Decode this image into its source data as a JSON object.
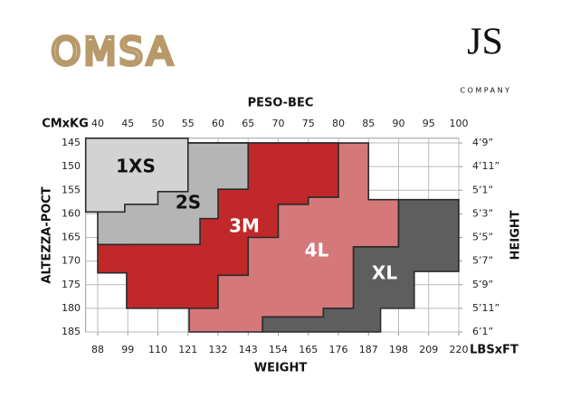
{
  "logos": {
    "left": "OMSA",
    "right": "JS",
    "right_sub": "COMPANY"
  },
  "chart_data": {
    "type": "size-chart",
    "x_title": "PESO-ВЕС",
    "x2_title": "WEIGHT",
    "y_title": "ALTEZZA-РОСТ",
    "y2_title": "HEIGHT",
    "x_unit": "CMxKG",
    "x2_unit": "LBSxFT",
    "xlim": [
      38,
      100
    ],
    "xticks": [
      40,
      45,
      50,
      55,
      60,
      65,
      70,
      75,
      80,
      85,
      90,
      95,
      100
    ],
    "x2lim": [
      83.6,
      220
    ],
    "x2ticks": [
      88,
      99,
      110,
      121,
      132,
      143,
      154,
      165,
      176,
      187,
      198,
      209,
      220
    ],
    "ylim": [
      144,
      185
    ],
    "y_inverted": true,
    "yticks": [
      145,
      150,
      155,
      160,
      165,
      170,
      175,
      180,
      185
    ],
    "y2lim": [
      56.6,
      73
    ],
    "y2ticks": [
      {
        "value": 57,
        "label": "4’9”"
      },
      {
        "value": 59,
        "label": "4’11”"
      },
      {
        "value": 61,
        "label": "5’1”"
      },
      {
        "value": 63,
        "label": "5’3”"
      },
      {
        "value": 65,
        "label": "5’5”"
      },
      {
        "value": 67,
        "label": "5’7”"
      },
      {
        "value": 69,
        "label": "5’9”"
      },
      {
        "value": 71,
        "label": "5’11”"
      },
      {
        "value": 73,
        "label": "6’1”"
      }
    ],
    "grid": true,
    "series": [
      {
        "name": "4L",
        "color": "#d4787a",
        "x": [
          55.2,
          85,
          85,
          90,
          90,
          82.5,
          82.5,
          77.5,
          77.5,
          67.4,
          67.4,
          55.2
        ],
        "values": [
          145,
          145,
          157,
          157,
          167,
          167,
          180,
          180,
          181.8,
          181.8,
          185,
          185
        ]
      },
      {
        "name": "XL",
        "color": "#5e5e5e",
        "x": [
          90,
          100,
          100,
          92.6,
          92.6,
          87,
          87,
          67.4,
          67.4,
          77.5,
          77.5,
          82.5,
          82.5,
          90
        ],
        "values": [
          157,
          157,
          172.2,
          172.2,
          180,
          180,
          185,
          185,
          181.8,
          181.8,
          180,
          180,
          167,
          167
        ]
      },
      {
        "name": "3M",
        "color": "#c0282a",
        "x": [
          45,
          80,
          80,
          75,
          75,
          70,
          70,
          65,
          65,
          60,
          60,
          44.8,
          44.8,
          40,
          40,
          45
        ],
        "values": [
          145,
          145,
          156.5,
          156.5,
          158,
          158,
          165,
          165,
          173,
          173,
          180,
          180,
          172.5,
          172.5,
          166.5,
          166.5
        ]
      },
      {
        "name": "2S",
        "color": "#b5b5b5",
        "x": [
          40,
          65,
          65,
          60,
          60,
          57,
          57,
          40
        ],
        "values": [
          145,
          145,
          154.8,
          154.8,
          161,
          161,
          166.5,
          166.5
        ]
      },
      {
        "name": "1XS",
        "color": "#d3d3d3",
        "x": [
          38,
          55,
          55,
          50,
          50,
          44.5,
          44.5,
          38
        ],
        "values": [
          144,
          144,
          155.3,
          155.3,
          158,
          158,
          159.6,
          159.6
        ]
      }
    ]
  }
}
